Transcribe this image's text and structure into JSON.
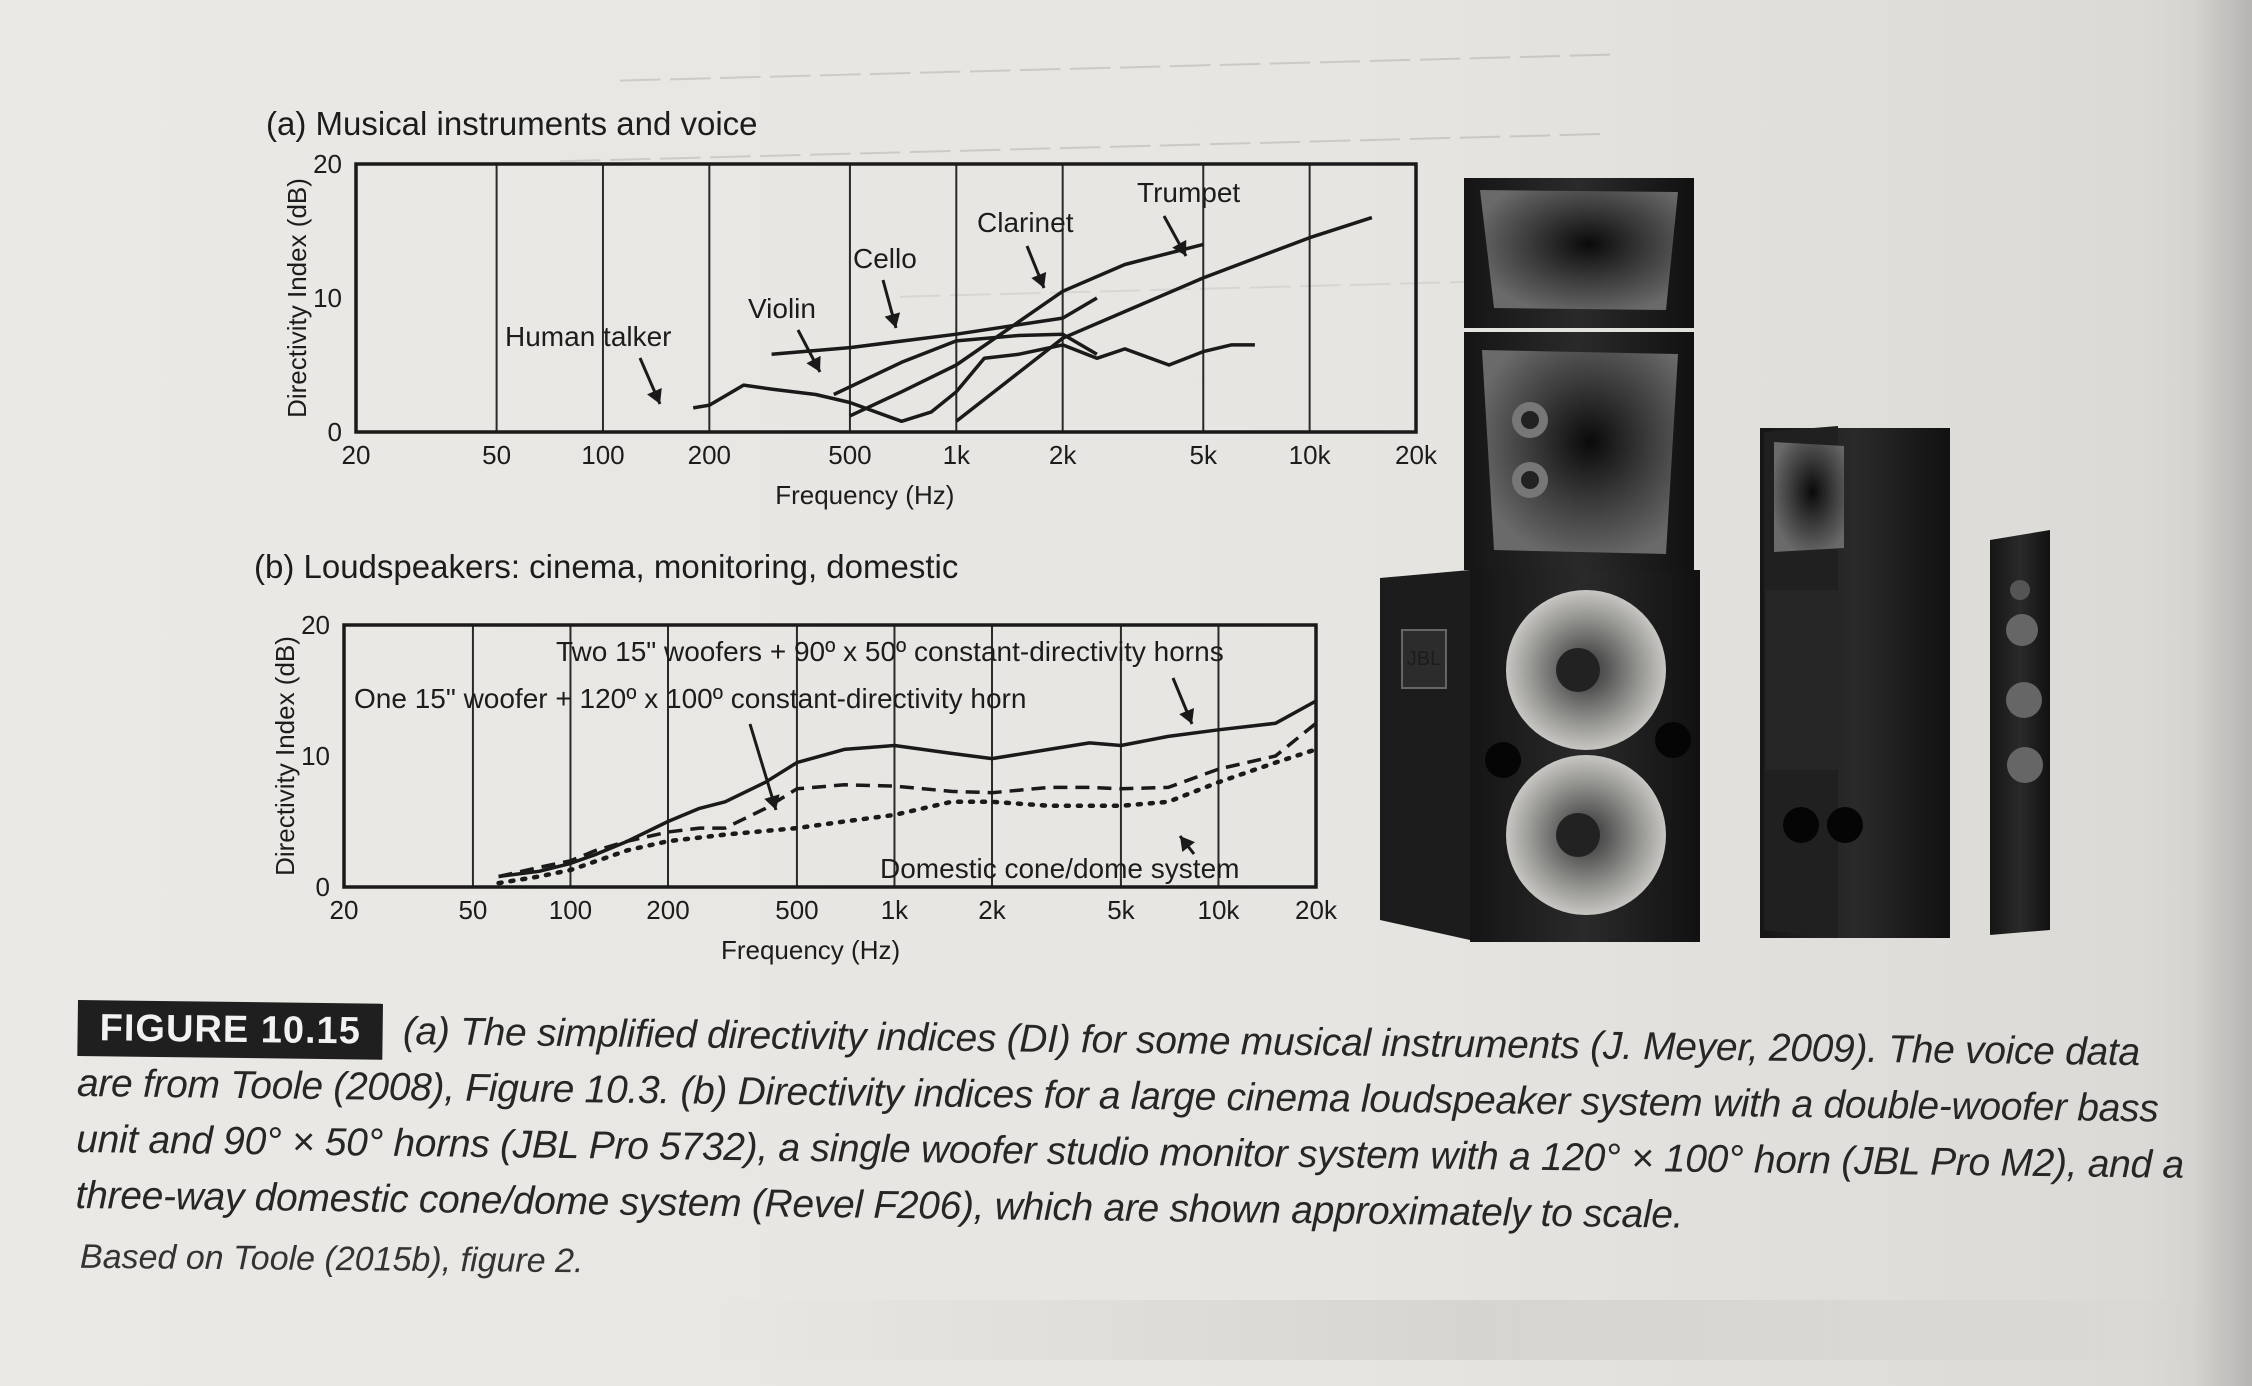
{
  "panel_a": {
    "title": "(a) Musical instruments and voice",
    "ylabel": "Directivity Index (dB)",
    "xlabel": "Frequency (Hz)",
    "yticks": [
      "0",
      "10",
      "20"
    ],
    "xticks": [
      "20",
      "50",
      "100",
      "200",
      "500",
      "1k",
      "2k",
      "5k",
      "10k",
      "20k"
    ],
    "annotations": [
      "Human talker",
      "Violin",
      "Cello",
      "Clarinet",
      "Trumpet"
    ]
  },
  "panel_b": {
    "title": "(b) Loudspeakers: cinema, monitoring, domestic",
    "ylabel": "Directivity Index (dB)",
    "xlabel": "Frequency (Hz)",
    "yticks": [
      "0",
      "10",
      "20"
    ],
    "xticks": [
      "20",
      "50",
      "100",
      "200",
      "500",
      "1k",
      "2k",
      "5k",
      "10k",
      "20k"
    ],
    "annotations": [
      "Two 15\" woofers + 90º x 50º constant-directivity horns",
      "One 15\" woofer + 120º x 100º constant-directivity horn",
      "Domestic cone/dome system"
    ]
  },
  "caption": {
    "label": "FIGURE 10.15",
    "text": "(a) The simplified directivity indices (DI) for some musical instruments (J. Meyer, 2009). The voice data are from Toole (2008), Figure 10.3. (b) Directivity indices for a large cinema loudspeaker system with a double-woofer bass unit and 90° × 50° horns (JBL Pro 5732), a single woofer studio monitor system with a 120° × 100° horn (JBL Pro M2), and a three-way domestic cone/dome system (Revel F206), which are shown approximately to scale.",
    "source": "Based on Toole (2015b), figure 2."
  },
  "photo": {
    "brand_badge": "JBL"
  },
  "chart_data": [
    {
      "type": "line",
      "x_scale": "log",
      "xlim": [
        20,
        20000
      ],
      "ylim": [
        0,
        20
      ],
      "grid": true,
      "title": "(a) Musical instruments and voice",
      "xlabel": "Frequency (Hz)",
      "ylabel": "Directivity Index (dB)",
      "series": [
        {
          "name": "Human talker",
          "x": [
            180,
            200,
            250,
            300,
            400,
            500,
            700,
            850,
            1000,
            1200,
            1500,
            2000,
            2500,
            3000,
            4000,
            5000,
            6000,
            7000
          ],
          "y": [
            1.8,
            2,
            3.5,
            3.2,
            2.8,
            2.2,
            0.8,
            1.5,
            3,
            5.5,
            5.8,
            6.5,
            5.5,
            6.2,
            5,
            6,
            6.5,
            6.5
          ]
        },
        {
          "name": "Violin",
          "x": [
            300,
            500,
            1000,
            2000,
            2500
          ],
          "y": [
            5.8,
            6.3,
            7.3,
            8.5,
            10
          ]
        },
        {
          "name": "Cello",
          "x": [
            450,
            700,
            1000,
            1500,
            2000,
            2500
          ],
          "y": [
            2.8,
            5.2,
            6.8,
            7.2,
            7.3,
            5.8
          ]
        },
        {
          "name": "Clarinet",
          "x": [
            500,
            700,
            1000,
            2000,
            3000,
            5000
          ],
          "y": [
            1.2,
            3,
            5,
            10.5,
            12.5,
            14
          ]
        },
        {
          "name": "Trumpet",
          "x": [
            1000,
            2000,
            5000,
            10000,
            15000
          ],
          "y": [
            0.8,
            7,
            11.5,
            14.5,
            16
          ]
        }
      ]
    },
    {
      "type": "line",
      "x_scale": "log",
      "xlim": [
        20,
        20000
      ],
      "ylim": [
        0,
        20
      ],
      "grid": true,
      "title": "(b) Loudspeakers: cinema, monitoring, domestic",
      "xlabel": "Frequency (Hz)",
      "ylabel": "Directivity Index (dB)",
      "series": [
        {
          "name": "Two 15\" woofers + 90º x 50º constant-directivity horns",
          "style": "solid",
          "x": [
            60,
            80,
            100,
            120,
            150,
            200,
            250,
            300,
            400,
            500,
            700,
            1000,
            1500,
            2000,
            3000,
            4000,
            5000,
            7000,
            10000,
            15000,
            20000
          ],
          "y": [
            0.8,
            1.2,
            1.8,
            2.5,
            3.5,
            5,
            6,
            6.5,
            8,
            9.5,
            10.5,
            10.8,
            10.2,
            9.8,
            10.5,
            11,
            10.8,
            11.5,
            12,
            12.5,
            14.2
          ]
        },
        {
          "name": "One 15\" woofer + 120º x 100º constant-directivity horn",
          "style": "dashed",
          "x": [
            60,
            80,
            100,
            120,
            150,
            200,
            250,
            300,
            400,
            500,
            700,
            1000,
            1500,
            2000,
            3000,
            4000,
            5000,
            7000,
            10000,
            15000,
            20000
          ],
          "y": [
            0.8,
            1.5,
            2,
            2.8,
            3.5,
            4.2,
            4.5,
            4.5,
            6,
            7.5,
            7.8,
            7.7,
            7.3,
            7.2,
            7.6,
            7.6,
            7.5,
            7.6,
            9,
            10,
            12.5
          ]
        },
        {
          "name": "Domestic cone/dome system",
          "style": "dotted",
          "x": [
            60,
            80,
            100,
            150,
            200,
            300,
            500,
            700,
            1000,
            1500,
            2000,
            3000,
            5000,
            7000,
            10000,
            15000,
            20000
          ],
          "y": [
            0.3,
            0.8,
            1.3,
            2.8,
            3.5,
            4,
            4.5,
            5,
            5.5,
            6.5,
            6.5,
            6.2,
            6.2,
            6.5,
            8,
            9.5,
            10.5
          ]
        }
      ]
    }
  ]
}
